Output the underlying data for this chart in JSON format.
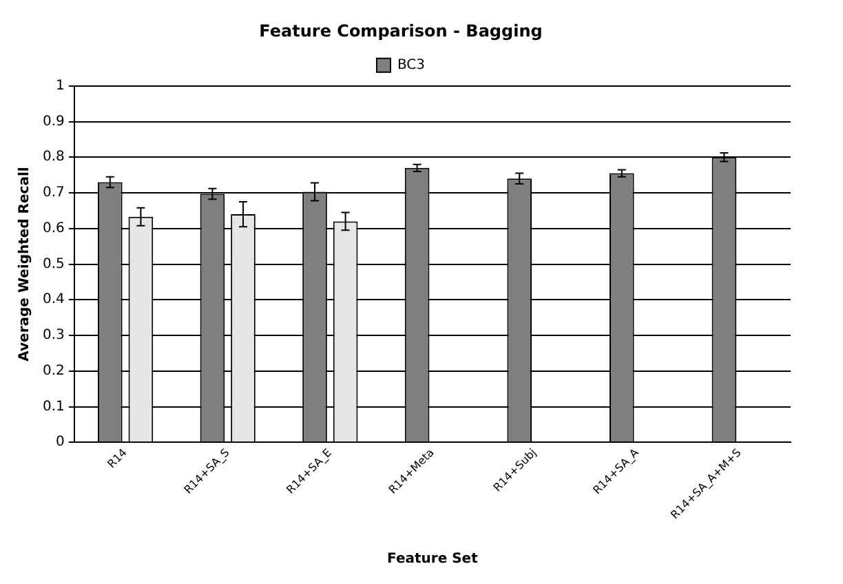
{
  "chart_data": {
    "type": "bar",
    "title": "Feature Comparison - Bagging",
    "xlabel": "Feature Set",
    "ylabel": "Average Weighted Recall",
    "categories": [
      "R14",
      "R14+SA_S",
      "R14+SA_E",
      "R14+Meta",
      "R14+Subj",
      "R14+SA_A",
      "R14+SA_A+M+S"
    ],
    "series": [
      {
        "name": "BC3",
        "color": "#7f7f7f",
        "values": [
          0.73,
          0.697,
          0.703,
          0.77,
          0.74,
          0.755,
          0.8
        ],
        "errors": [
          0.015,
          0.015,
          0.025,
          0.01,
          0.015,
          0.01,
          0.012
        ]
      },
      {
        "color": "#e6e6e6",
        "values": [
          0.633,
          0.64,
          0.62,
          null,
          null,
          null,
          null
        ],
        "errors": [
          0.025,
          0.035,
          0.025,
          null,
          null,
          null,
          null
        ]
      }
    ],
    "ylim": [
      0,
      1
    ],
    "yticks": [
      0,
      0.1,
      0.2,
      0.3,
      0.4,
      0.5,
      0.6,
      0.7,
      0.8,
      0.9,
      1
    ],
    "grid": "y",
    "legend": "top"
  }
}
